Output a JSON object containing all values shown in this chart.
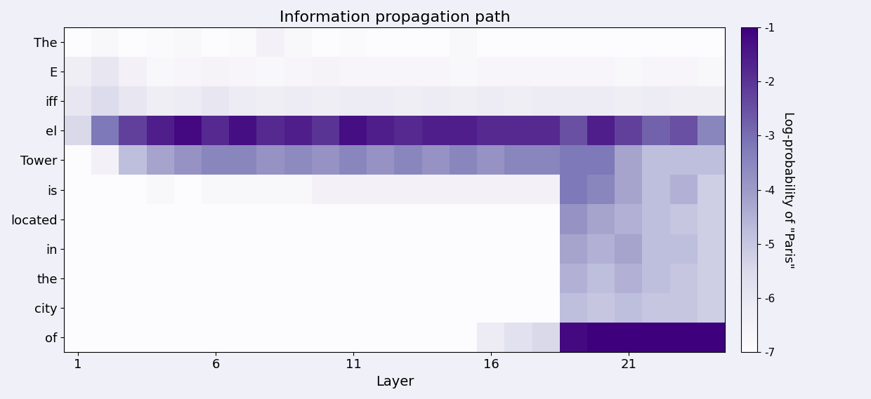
{
  "title": "Information propagation path",
  "xlabel": "Layer",
  "colorbar_label": "Log-probability of \"Paris\"",
  "tokens": [
    "The",
    "E",
    "iff",
    "el",
    "Tower",
    "is",
    "located",
    "in",
    "the",
    "city",
    "of"
  ],
  "n_layers": 24,
  "vmin": -7,
  "vmax": -1,
  "data": [
    [
      -7.0,
      -6.8,
      -7.0,
      -6.9,
      -6.8,
      -7.0,
      -6.9,
      -6.5,
      -6.8,
      -7.0,
      -6.9,
      -7.0,
      -7.0,
      -7.0,
      -6.8,
      -7.0,
      -7.0,
      -7.0,
      -7.0,
      -7.0,
      -7.0,
      -7.0,
      -7.0,
      -7.0
    ],
    [
      -6.3,
      -6.0,
      -6.5,
      -6.8,
      -6.7,
      -6.6,
      -6.7,
      -6.8,
      -6.7,
      -6.6,
      -6.7,
      -6.7,
      -6.7,
      -6.7,
      -6.8,
      -6.7,
      -6.7,
      -6.7,
      -6.7,
      -6.7,
      -6.8,
      -6.7,
      -6.7,
      -6.8
    ],
    [
      -6.0,
      -5.6,
      -6.0,
      -6.3,
      -6.2,
      -6.0,
      -6.2,
      -6.3,
      -6.2,
      -6.3,
      -6.2,
      -6.2,
      -6.3,
      -6.2,
      -6.3,
      -6.2,
      -6.3,
      -6.2,
      -6.2,
      -6.2,
      -6.3,
      -6.2,
      -6.3,
      -6.3
    ],
    [
      -5.5,
      -3.2,
      -2.2,
      -1.6,
      -1.2,
      -1.8,
      -1.3,
      -1.8,
      -1.6,
      -2.0,
      -1.3,
      -1.6,
      -1.8,
      -1.6,
      -1.6,
      -1.8,
      -1.8,
      -1.8,
      -2.5,
      -1.6,
      -2.2,
      -2.8,
      -2.5,
      -3.5
    ],
    [
      -7.0,
      -6.5,
      -4.8,
      -4.2,
      -3.8,
      -3.5,
      -3.5,
      -3.8,
      -3.6,
      -3.8,
      -3.5,
      -3.8,
      -3.5,
      -3.8,
      -3.5,
      -3.8,
      -3.5,
      -3.5,
      -3.2,
      -3.2,
      -4.2,
      -4.8,
      -4.8,
      -4.8
    ],
    [
      -7.0,
      -7.0,
      -7.0,
      -6.8,
      -7.0,
      -6.8,
      -6.8,
      -6.8,
      -6.8,
      -6.5,
      -6.5,
      -6.5,
      -6.5,
      -6.5,
      -6.5,
      -6.5,
      -6.5,
      -6.5,
      -3.2,
      -3.5,
      -4.2,
      -4.8,
      -4.5,
      -5.2
    ],
    [
      -7.0,
      -7.0,
      -7.0,
      -7.0,
      -7.0,
      -7.0,
      -7.0,
      -7.0,
      -7.0,
      -7.0,
      -7.0,
      -7.0,
      -7.0,
      -7.0,
      -7.0,
      -7.0,
      -7.0,
      -7.0,
      -3.8,
      -4.2,
      -4.5,
      -4.8,
      -5.0,
      -5.2
    ],
    [
      -7.0,
      -7.0,
      -7.0,
      -7.0,
      -7.0,
      -7.0,
      -7.0,
      -7.0,
      -7.0,
      -7.0,
      -7.0,
      -7.0,
      -7.0,
      -7.0,
      -7.0,
      -7.0,
      -7.0,
      -7.0,
      -4.2,
      -4.5,
      -4.2,
      -4.8,
      -4.8,
      -5.2
    ],
    [
      -7.0,
      -7.0,
      -7.0,
      -7.0,
      -7.0,
      -7.0,
      -7.0,
      -7.0,
      -7.0,
      -7.0,
      -7.0,
      -7.0,
      -7.0,
      -7.0,
      -7.0,
      -7.0,
      -7.0,
      -7.0,
      -4.5,
      -4.8,
      -4.5,
      -4.8,
      -5.0,
      -5.2
    ],
    [
      -7.0,
      -7.0,
      -7.0,
      -7.0,
      -7.0,
      -7.0,
      -7.0,
      -7.0,
      -7.0,
      -7.0,
      -7.0,
      -7.0,
      -7.0,
      -7.0,
      -7.0,
      -7.0,
      -7.0,
      -7.0,
      -4.8,
      -5.0,
      -4.8,
      -5.0,
      -5.0,
      -5.2
    ],
    [
      -7.0,
      -7.0,
      -7.0,
      -7.0,
      -7.0,
      -7.0,
      -7.0,
      -7.0,
      -7.0,
      -7.0,
      -7.0,
      -7.0,
      -7.0,
      -7.0,
      -7.0,
      -6.2,
      -5.8,
      -5.5,
      -1.2,
      -1.0,
      -1.0,
      -1.0,
      -1.0,
      -1.0
    ]
  ],
  "colormap": "Purples",
  "background_color": "#f0f0f8",
  "xticks": [
    1,
    6,
    11,
    16,
    21
  ],
  "colorbar_ticks": [
    -1,
    -2,
    -3,
    -4,
    -5,
    -6,
    -7
  ]
}
